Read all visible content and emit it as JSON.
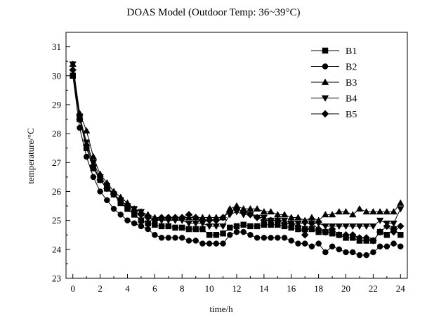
{
  "chart_data": {
    "type": "line",
    "title": "DOAS Model (Outdoor Temp: 36~39°C)",
    "xlabel": "time/h",
    "ylabel": "temperature/°C",
    "xlim": [
      -0.5,
      24.5
    ],
    "ylim": [
      23,
      31.5
    ],
    "xticks": [
      0,
      2,
      4,
      6,
      8,
      10,
      12,
      14,
      16,
      18,
      20,
      22,
      24
    ],
    "yticks": [
      23,
      24,
      25,
      26,
      27,
      28,
      29,
      30,
      31
    ],
    "grid": false,
    "legend_position": "top-right",
    "x": [
      0,
      0.5,
      1,
      1.5,
      2,
      2.5,
      3,
      3.5,
      4,
      4.5,
      5,
      5.5,
      6,
      6.5,
      7,
      7.5,
      8,
      8.5,
      9,
      9.5,
      10,
      10.5,
      11,
      11.5,
      12,
      12.5,
      13,
      13.5,
      14,
      14.5,
      15,
      15.5,
      16,
      16.5,
      17,
      17.5,
      18,
      18.5,
      19,
      19.5,
      20,
      20.5,
      21,
      21.5,
      22,
      22.5,
      23,
      23.5,
      24
    ],
    "series": [
      {
        "name": "B1",
        "marker": "square",
        "values": [
          30.0,
          28.5,
          27.5,
          26.8,
          26.4,
          26.1,
          25.9,
          25.6,
          25.4,
          25.2,
          25.0,
          24.9,
          24.85,
          24.8,
          24.8,
          24.75,
          24.75,
          24.7,
          24.7,
          24.7,
          24.5,
          24.5,
          24.55,
          24.75,
          24.8,
          24.85,
          24.8,
          24.8,
          24.85,
          24.85,
          24.85,
          24.8,
          24.75,
          24.7,
          24.7,
          24.7,
          24.6,
          24.6,
          24.55,
          24.5,
          24.4,
          24.4,
          24.3,
          24.3,
          24.3,
          24.6,
          24.5,
          24.7,
          24.5
        ]
      },
      {
        "name": "B2",
        "marker": "circle",
        "values": [
          30.0,
          28.2,
          27.2,
          26.5,
          26.0,
          25.7,
          25.4,
          25.2,
          25.0,
          24.9,
          24.8,
          24.7,
          24.5,
          24.4,
          24.4,
          24.4,
          24.4,
          24.3,
          24.3,
          24.2,
          24.2,
          24.2,
          24.2,
          24.5,
          24.6,
          24.6,
          24.5,
          24.4,
          24.4,
          24.4,
          24.4,
          24.4,
          24.3,
          24.2,
          24.2,
          24.1,
          24.2,
          23.9,
          24.1,
          24.0,
          23.9,
          23.9,
          23.8,
          23.8,
          23.9,
          24.1,
          24.1,
          24.2,
          24.1
        ]
      },
      {
        "name": "B3",
        "marker": "triangle-up",
        "values": [
          30.4,
          28.7,
          28.1,
          27.2,
          26.6,
          26.3,
          26.0,
          25.8,
          25.6,
          25.4,
          25.3,
          25.2,
          25.1,
          25.1,
          25.1,
          25.1,
          25.1,
          25.1,
          25.1,
          25.1,
          25.1,
          25.1,
          25.1,
          25.4,
          25.5,
          25.4,
          25.4,
          25.4,
          25.3,
          25.3,
          25.2,
          25.2,
          25.1,
          25.1,
          25.0,
          25.1,
          25.0,
          25.2,
          25.2,
          25.3,
          25.3,
          25.2,
          25.4,
          25.3,
          25.3,
          25.3,
          25.3,
          25.3,
          25.6
        ]
      },
      {
        "name": "B4",
        "marker": "triangle-down",
        "values": [
          30.4,
          28.6,
          27.7,
          27.0,
          26.5,
          26.2,
          25.9,
          25.7,
          25.5,
          25.4,
          25.3,
          25.1,
          25.0,
          25.0,
          25.0,
          25.0,
          25.0,
          24.9,
          24.9,
          24.9,
          24.8,
          24.8,
          24.8,
          25.2,
          25.3,
          25.2,
          25.2,
          25.1,
          25.1,
          25.0,
          25.0,
          25.0,
          24.9,
          24.9,
          24.9,
          24.9,
          24.9,
          24.8,
          24.8,
          24.8,
          24.8,
          24.8,
          24.8,
          24.8,
          24.8,
          25.0,
          24.9,
          24.9,
          25.4
        ]
      },
      {
        "name": "B5",
        "marker": "diamond",
        "values": [
          30.2,
          28.5,
          27.6,
          26.9,
          26.4,
          26.1,
          25.9,
          25.7,
          25.5,
          25.3,
          25.2,
          25.1,
          25.0,
          25.1,
          25.1,
          25.1,
          25.1,
          25.2,
          25.1,
          25.0,
          25.0,
          25.0,
          25.1,
          25.3,
          25.4,
          25.3,
          25.2,
          25.1,
          25.0,
          25.0,
          25.0,
          24.9,
          24.9,
          24.8,
          24.5,
          24.9,
          24.7,
          24.6,
          24.7,
          24.5,
          24.5,
          24.5,
          24.4,
          24.4,
          24.3,
          24.6,
          24.8,
          24.6,
          24.8
        ]
      }
    ]
  }
}
